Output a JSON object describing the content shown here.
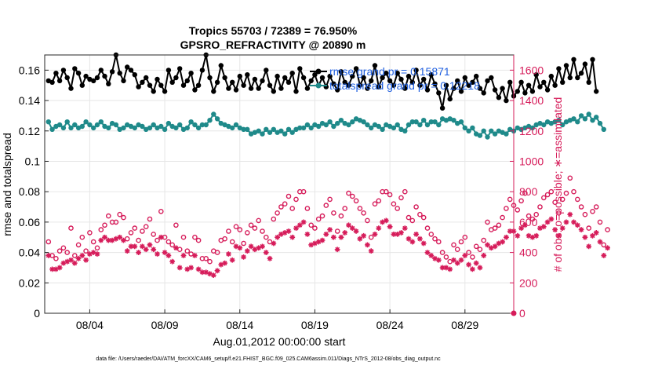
{
  "chart_data": {
    "type": "line",
    "title": "Tropics 55703 / 72389 = 76.950%",
    "subtitle": "GPSRO_REFRACTIVITY @ 20890 m",
    "xlabel": "Aug.01,2012 00:00:00 start",
    "ylabel": "rmse and totalspread",
    "y2label": "# of obs: o=possible; ∗=assimilated",
    "footer": "data file: /Users/raeder/DAI/ATM_forcXX/CAM6_setup/f.e21.FHIST_BGC.f09_025.CAM6assim.011/Diags_NTrS_2012-08/obs_diag_output.nc",
    "xlim": [
      0.75,
      32.0
    ],
    "ylim": [
      0,
      0.17
    ],
    "y2lim": [
      0,
      1700
    ],
    "x_ticks": [
      3.75,
      8.75,
      13.75,
      18.75,
      23.75,
      28.75
    ],
    "x_tick_labels": [
      "08/04",
      "08/09",
      "08/14",
      "08/19",
      "08/24",
      "08/29"
    ],
    "y_ticks": [
      0,
      0.02,
      0.04,
      0.06,
      0.08,
      0.1,
      0.12,
      0.14,
      0.16
    ],
    "y_tick_labels": [
      "0",
      "0.02",
      "0.04",
      "0.06",
      "0.08",
      "0.1",
      "0.12",
      "0.14",
      "0.16"
    ],
    "y2_ticks": [
      0,
      200,
      400,
      600,
      800,
      1000,
      1200,
      1400,
      1600
    ],
    "y2_tick_labels": [
      "0",
      "200",
      "400",
      "600",
      "800",
      "1000",
      "1200",
      "1400",
      "1600"
    ],
    "legend_location": "top-right",
    "x_start": 1.0,
    "x_step": 0.25,
    "series": [
      {
        "name": "rmse grand pr = 0.15871",
        "color": "#000000",
        "axis": "left",
        "style": "line-filled-circles",
        "values": [
          0.153,
          0.152,
          0.158,
          0.153,
          0.16,
          0.155,
          0.148,
          0.161,
          0.158,
          0.15,
          0.156,
          0.154,
          0.153,
          0.155,
          0.16,
          0.156,
          0.151,
          0.159,
          0.17,
          0.158,
          0.153,
          0.162,
          0.16,
          0.157,
          0.149,
          0.152,
          0.155,
          0.15,
          0.146,
          0.154,
          0.15,
          0.146,
          0.16,
          0.152,
          0.155,
          0.161,
          0.15,
          0.153,
          0.158,
          0.147,
          0.15,
          0.16,
          0.17,
          0.155,
          0.146,
          0.152,
          0.163,
          0.155,
          0.148,
          0.152,
          0.147,
          0.156,
          0.15,
          0.157,
          0.148,
          0.154,
          0.148,
          0.153,
          0.16,
          0.15,
          0.146,
          0.156,
          0.148,
          0.155,
          0.152,
          0.158,
          0.146,
          0.161,
          0.155,
          0.148,
          0.153,
          0.157,
          0.15,
          0.155,
          0.149,
          0.156,
          0.151,
          0.147,
          0.159,
          0.152,
          0.15,
          0.156,
          0.161,
          0.15,
          0.155,
          0.148,
          0.153,
          0.163,
          0.149,
          0.155,
          0.158,
          0.153,
          0.15,
          0.158,
          0.154,
          0.148,
          0.156,
          0.152,
          0.16,
          0.15,
          0.154,
          0.147,
          0.157,
          0.151,
          0.145,
          0.135,
          0.15,
          0.141,
          0.148,
          0.153,
          0.146,
          0.155,
          0.15,
          0.152,
          0.156,
          0.148,
          0.145,
          0.153,
          0.155,
          0.147,
          0.142,
          0.148,
          0.14,
          0.152,
          0.143,
          0.146,
          0.152,
          0.145,
          0.15,
          0.146,
          0.157,
          0.149,
          0.152,
          0.147,
          0.156,
          0.15,
          0.161,
          0.152,
          0.163,
          0.155,
          0.167,
          0.155,
          0.158,
          0.164,
          0.152,
          0.167,
          0.146
        ]
      },
      {
        "name": "totalspread grand pr = 0.12218",
        "color": "#1f8a8a",
        "axis": "left",
        "style": "line-filled-circles",
        "values": [
          0.126,
          0.121,
          0.123,
          0.124,
          0.122,
          0.126,
          0.122,
          0.124,
          0.122,
          0.123,
          0.126,
          0.124,
          0.122,
          0.124,
          0.126,
          0.123,
          0.122,
          0.125,
          0.124,
          0.121,
          0.122,
          0.124,
          0.123,
          0.122,
          0.124,
          0.123,
          0.121,
          0.122,
          0.124,
          0.122,
          0.123,
          0.121,
          0.125,
          0.123,
          0.122,
          0.124,
          0.121,
          0.122,
          0.126,
          0.124,
          0.122,
          0.124,
          0.124,
          0.127,
          0.131,
          0.128,
          0.125,
          0.124,
          0.123,
          0.122,
          0.124,
          0.122,
          0.121,
          0.121,
          0.118,
          0.119,
          0.12,
          0.118,
          0.121,
          0.119,
          0.121,
          0.119,
          0.12,
          0.118,
          0.121,
          0.119,
          0.121,
          0.122,
          0.122,
          0.124,
          0.122,
          0.124,
          0.123,
          0.125,
          0.124,
          0.126,
          0.123,
          0.125,
          0.127,
          0.125,
          0.124,
          0.126,
          0.128,
          0.127,
          0.126,
          0.124,
          0.122,
          0.124,
          0.123,
          0.121,
          0.124,
          0.123,
          0.122,
          0.124,
          0.121,
          0.12,
          0.124,
          0.126,
          0.126,
          0.124,
          0.127,
          0.124,
          0.126,
          0.126,
          0.124,
          0.128,
          0.127,
          0.128,
          0.127,
          0.125,
          0.126,
          0.122,
          0.12,
          0.122,
          0.118,
          0.117,
          0.12,
          0.116,
          0.12,
          0.118,
          0.12,
          0.119,
          0.118,
          0.121,
          0.12,
          0.122,
          0.121,
          0.122,
          0.123,
          0.122,
          0.124,
          0.125,
          0.124,
          0.126,
          0.125,
          0.126,
          0.127,
          0.124,
          0.126,
          0.127,
          0.128,
          0.126,
          0.13,
          0.128,
          0.131,
          0.127,
          0.129,
          0.125,
          0.121
        ]
      },
      {
        "name": "possible",
        "color": "#d61c5a",
        "axis": "right",
        "style": "open-circles",
        "values": [
          470,
          380,
          360,
          410,
          430,
          400,
          560,
          380,
          450,
          500,
          410,
          530,
          470,
          430,
          550,
          580,
          640,
          600,
          600,
          650,
          630,
          490,
          530,
          560,
          480,
          540,
          570,
          620,
          520,
          480,
          670,
          500,
          470,
          450,
          580,
          420,
          500,
          410,
          390,
          500,
          480,
          360,
          360,
          340,
          410,
          400,
          480,
          490,
          540,
          470,
          570,
          550,
          460,
          530,
          580,
          560,
          610,
          540,
          500,
          470,
          620,
          660,
          700,
          720,
          770,
          690,
          750,
          800,
          800,
          690,
          580,
          560,
          620,
          640,
          710,
          750,
          660,
          540,
          640,
          690,
          790,
          770,
          740,
          690,
          660,
          610,
          500,
          720,
          740,
          800,
          800,
          780,
          720,
          690,
          760,
          800,
          630,
          610,
          700,
          650,
          630,
          560,
          520,
          490,
          470,
          400,
          370,
          340,
          450,
          420,
          470,
          500,
          400,
          370,
          440,
          420,
          480,
          600,
          550,
          560,
          580,
          630,
          690,
          750,
          710,
          680,
          740,
          790,
          640,
          620,
          650,
          700,
          760,
          780,
          800,
          730,
          660,
          750,
          790,
          890,
          800,
          750,
          700,
          650,
          560,
          670,
          700,
          600,
          450,
          550
        ]
      },
      {
        "name": "assimilated",
        "color": "#d61c5a",
        "axis": "right",
        "style": "asterisks",
        "values": [
          380,
          290,
          290,
          300,
          330,
          340,
          350,
          330,
          360,
          380,
          350,
          390,
          400,
          390,
          480,
          500,
          480,
          480,
          490,
          500,
          480,
          410,
          440,
          440,
          400,
          440,
          420,
          450,
          420,
          390,
          500,
          400,
          380,
          340,
          430,
          300,
          380,
          290,
          300,
          380,
          290,
          270,
          270,
          260,
          250,
          280,
          320,
          330,
          390,
          350,
          440,
          430,
          370,
          410,
          440,
          420,
          430,
          440,
          400,
          360,
          460,
          500,
          520,
          530,
          540,
          500,
          560,
          580,
          600,
          520,
          450,
          460,
          470,
          480,
          520,
          550,
          500,
          420,
          500,
          530,
          580,
          560,
          540,
          490,
          510,
          450,
          410,
          520,
          560,
          600,
          610,
          570,
          520,
          520,
          530,
          560,
          490,
          470,
          520,
          490,
          460,
          400,
          380,
          360,
          350,
          300,
          300,
          290,
          350,
          330,
          350,
          380,
          320,
          290,
          330,
          300,
          380,
          450,
          430,
          440,
          460,
          470,
          500,
          540,
          540,
          510,
          560,
          580,
          510,
          500,
          510,
          560,
          570,
          600,
          620,
          550,
          510,
          560,
          600,
          650,
          600,
          580,
          550,
          500,
          440,
          510,
          530,
          470,
          380,
          430
        ]
      }
    ]
  }
}
